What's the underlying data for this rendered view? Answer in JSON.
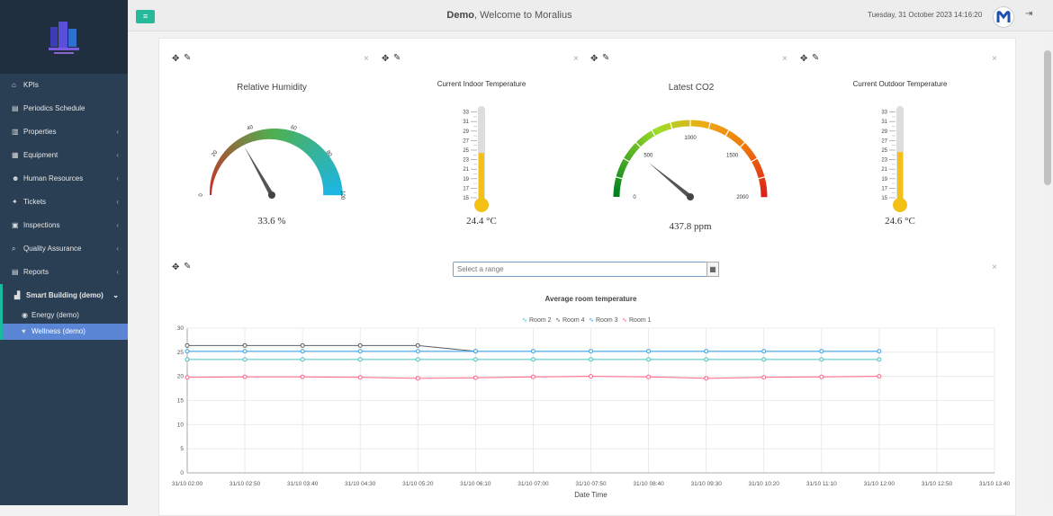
{
  "header": {
    "brand": "Demo",
    "welcome": ", Welcome to Moralius",
    "datetime": "Tuesday, 31 October 2023 14:16:20"
  },
  "sidebar": {
    "items": [
      {
        "icon": "home-icon",
        "label": "KPIs"
      },
      {
        "icon": "calendar-icon",
        "label": "Periodics Schedule"
      },
      {
        "icon": "building-icon",
        "label": "Properties"
      },
      {
        "icon": "equipment-icon",
        "label": "Equipment"
      },
      {
        "icon": "users-icon",
        "label": "Human Resources"
      },
      {
        "icon": "ticket-icon",
        "label": "Tickets"
      },
      {
        "icon": "clipboard-icon",
        "label": "Inspections"
      },
      {
        "icon": "search-icon",
        "label": "Quality Assurance"
      },
      {
        "icon": "report-icon",
        "label": "Reports"
      },
      {
        "icon": "chart-icon",
        "label": "Smart Building (demo)"
      },
      {
        "icon": "globe-icon",
        "label": "Energy (demo)"
      },
      {
        "icon": "heart-icon",
        "label": "Wellness (demo)"
      }
    ]
  },
  "widgets": {
    "humidity": {
      "title": "Relative Humidity",
      "value": "33.6 %",
      "min": 0,
      "max": 100,
      "reading": 33.6,
      "ticks": [
        "0",
        "20",
        "40",
        "60",
        "80",
        "100"
      ]
    },
    "indoor": {
      "title": "Current Indoor Temperature",
      "value": "24.4 °C",
      "reading": 24.4,
      "min": 15,
      "max": 33,
      "ticks": [
        "33",
        "31",
        "29",
        "27",
        "25",
        "23",
        "21",
        "19",
        "17",
        "15"
      ]
    },
    "co2": {
      "title": "Latest CO2",
      "value": "437.8 ppm",
      "reading": 437.8,
      "min": 0,
      "max": 2000,
      "ticks": [
        "0",
        "500",
        "1000",
        "1500",
        "2000"
      ]
    },
    "outdoor": {
      "title": "Current Outdoor Temperature",
      "value": "24.6 °C",
      "reading": 24.6,
      "min": 15,
      "max": 33,
      "ticks": [
        "33",
        "31",
        "29",
        "27",
        "25",
        "23",
        "21",
        "19",
        "17",
        "15"
      ]
    }
  },
  "range": {
    "placeholder": "Select a range"
  },
  "colors": {
    "accent": "#26b99a",
    "sidebar": "#2a3f54",
    "active": "#5b86d6"
  },
  "chart_data": {
    "type": "line",
    "title": "Average room temperature",
    "xlabel": "Date Time",
    "ylabel": "",
    "ylim": [
      0,
      30
    ],
    "yticks": [
      "0",
      "5",
      "10",
      "15",
      "20",
      "25",
      "30"
    ],
    "categories": [
      "31/10 02:00",
      "31/10 02:50",
      "31/10 03:40",
      "31/10 04:30",
      "31/10 05:20",
      "31/10 06:10",
      "31/10 07:00",
      "31/10 07:50",
      "31/10 08:40",
      "31/10 09:30",
      "31/10 10:20",
      "31/10 11:10",
      "31/10 12:00",
      "31/10 12:50",
      "31/10 13:40"
    ],
    "legend_position": "top",
    "series": [
      {
        "name": "Room 2",
        "color": "#4bc0c0",
        "x": [
          0,
          1,
          2,
          3,
          4,
          5,
          6,
          7,
          8,
          9,
          10,
          11,
          12
        ],
        "values": [
          23.5,
          23.5,
          23.5,
          23.5,
          23.5,
          23.5,
          23.5,
          23.5,
          23.5,
          23.5,
          23.5,
          23.5,
          23.5
        ]
      },
      {
        "name": "Room 4",
        "color": "#5a6169",
        "x": [
          0,
          1,
          2,
          3,
          4,
          5
        ],
        "values": [
          26.4,
          26.4,
          26.4,
          26.4,
          26.4,
          25.2
        ]
      },
      {
        "name": "Room 3",
        "color": "#36a2eb",
        "x": [
          0,
          1,
          2,
          3,
          4,
          5,
          6,
          7,
          8,
          9,
          10,
          11,
          12
        ],
        "values": [
          25.2,
          25.2,
          25.2,
          25.2,
          25.2,
          25.2,
          25.2,
          25.2,
          25.2,
          25.2,
          25.2,
          25.2,
          25.2
        ]
      },
      {
        "name": "Room 1",
        "color": "#ff6384",
        "x": [
          0,
          1,
          2,
          3,
          4,
          5,
          6,
          7,
          8,
          9,
          10,
          11,
          12
        ],
        "values": [
          19.8,
          19.9,
          19.9,
          19.8,
          19.6,
          19.7,
          19.9,
          20.0,
          19.9,
          19.6,
          19.8,
          19.9,
          20.0
        ]
      }
    ]
  }
}
